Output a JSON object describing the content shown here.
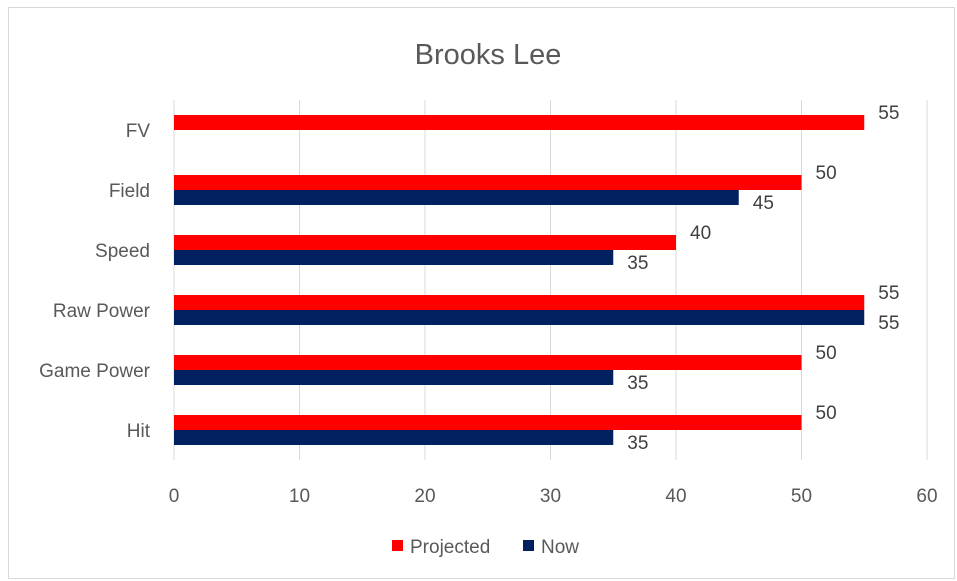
{
  "chart_data": {
    "type": "bar",
    "orientation": "horizontal",
    "title": "Brooks Lee",
    "categories": [
      "FV",
      "Field",
      "Speed",
      "Raw Power",
      "Game Power",
      "Hit"
    ],
    "series": [
      {
        "name": "Projected",
        "color": "#ff0000",
        "values": [
          55,
          50,
          40,
          55,
          50,
          50
        ]
      },
      {
        "name": "Now",
        "color": "#002060",
        "values": [
          null,
          45,
          35,
          55,
          35,
          35
        ]
      }
    ],
    "xlim": [
      0,
      60
    ],
    "xticks": [
      0,
      10,
      20,
      30,
      40,
      50,
      60
    ],
    "grid": true,
    "legend_position": "bottom",
    "data_labels": true
  }
}
